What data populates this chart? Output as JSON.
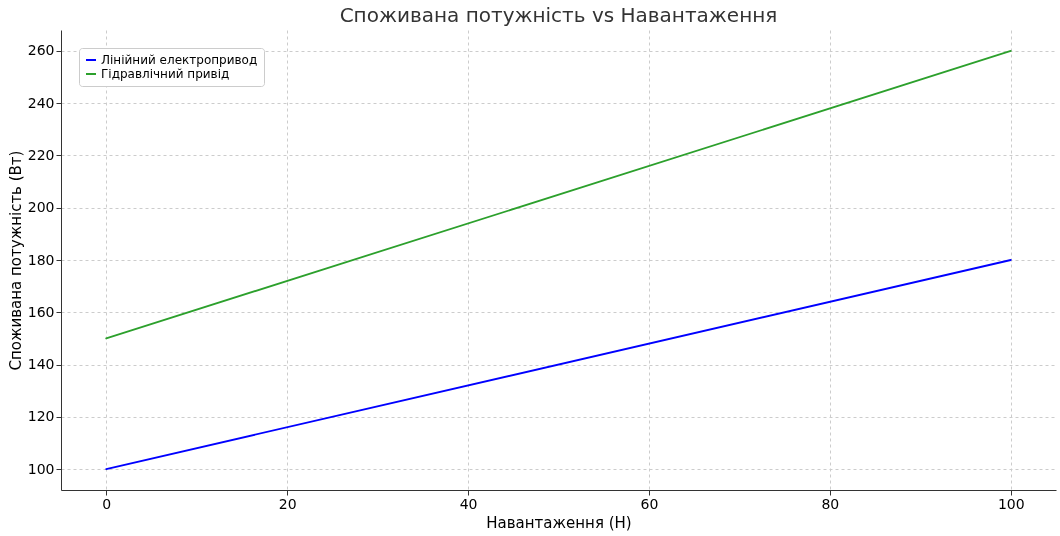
{
  "chart_data": {
    "type": "line",
    "title": "Споживана потужність vs Навантаження",
    "xlabel": "Навантаження (Н)",
    "ylabel": "Споживана потужність (Вт)",
    "x": [
      0,
      100
    ],
    "series": [
      {
        "name": "Лінійний електропривод",
        "color": "#0000ff",
        "values": [
          100,
          180
        ]
      },
      {
        "name": "Гідравлічний привід",
        "color": "#2ca02c",
        "values": [
          150,
          260
        ]
      }
    ],
    "xlim": [
      -5,
      105
    ],
    "xticks": [
      0,
      20,
      40,
      60,
      80,
      100
    ],
    "ylim": [
      92,
      268
    ],
    "yticks": [
      100,
      120,
      140,
      160,
      180,
      200,
      220,
      240,
      260
    ],
    "grid": true,
    "legend": "top left",
    "line_style": "solid",
    "marker": "none"
  }
}
